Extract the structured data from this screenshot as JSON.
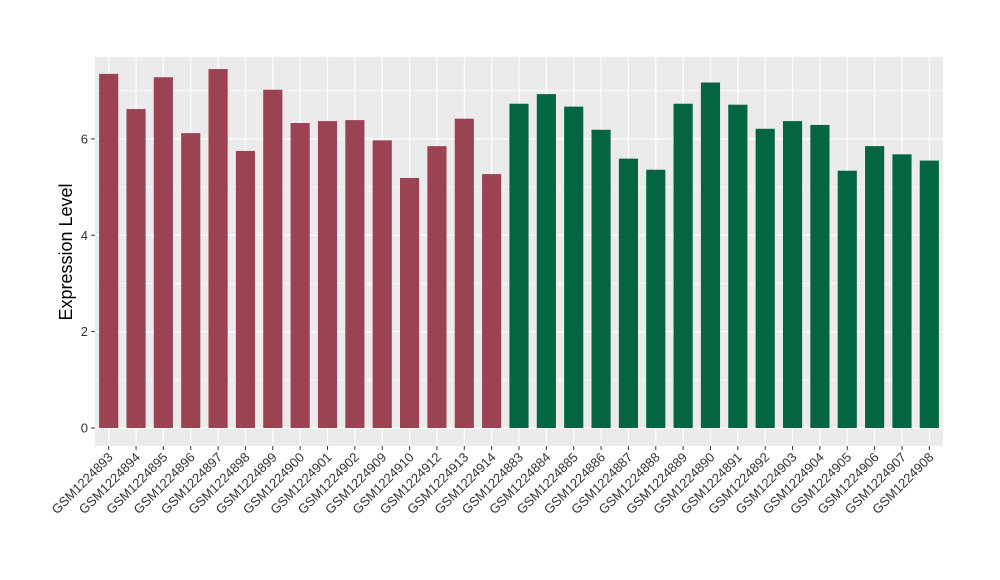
{
  "chart_data": {
    "type": "bar",
    "ylabel": "Expression Level",
    "xlabel": "",
    "ylim": [
      0,
      7.7
    ],
    "yticks": [
      0,
      2,
      4,
      6
    ],
    "grid": true,
    "legend": "none",
    "background_color": "#ebebeb",
    "grid_color": "#ffffff",
    "categories": [
      "GSM1224893",
      "GSM1224894",
      "GSM1224895",
      "GSM1224896",
      "GSM1224897",
      "GSM1224898",
      "GSM1224899",
      "GSM1224900",
      "GSM1224901",
      "GSM1224902",
      "GSM1224909",
      "GSM1224910",
      "GSM1224912",
      "GSM1224913",
      "GSM1224914",
      "GSM1224883",
      "GSM1224884",
      "GSM1224885",
      "GSM1224886",
      "GSM1224887",
      "GSM1224888",
      "GSM1224889",
      "GSM1224890",
      "GSM1224891",
      "GSM1224892",
      "GSM1224903",
      "GSM1224904",
      "GSM1224905",
      "GSM1224906",
      "GSM1224907",
      "GSM1224908"
    ],
    "values": [
      7.35,
      6.62,
      7.28,
      6.12,
      7.45,
      5.75,
      7.02,
      6.33,
      6.37,
      6.39,
      5.97,
      5.19,
      5.85,
      6.42,
      5.27,
      6.73,
      6.93,
      6.67,
      6.19,
      5.59,
      5.36,
      6.73,
      7.17,
      6.71,
      6.21,
      6.37,
      6.29,
      5.34,
      5.85,
      5.68,
      5.55
    ],
    "bar_colors": [
      "#9b4352",
      "#9b4352",
      "#9b4352",
      "#9b4352",
      "#9b4352",
      "#9b4352",
      "#9b4352",
      "#9b4352",
      "#9b4352",
      "#9b4352",
      "#9b4352",
      "#9b4352",
      "#9b4352",
      "#9b4352",
      "#9b4352",
      "#036641",
      "#036641",
      "#036641",
      "#036641",
      "#036641",
      "#036641",
      "#036641",
      "#036641",
      "#036641",
      "#036641",
      "#036641",
      "#036641",
      "#036641",
      "#036641",
      "#036641",
      "#036641"
    ]
  }
}
